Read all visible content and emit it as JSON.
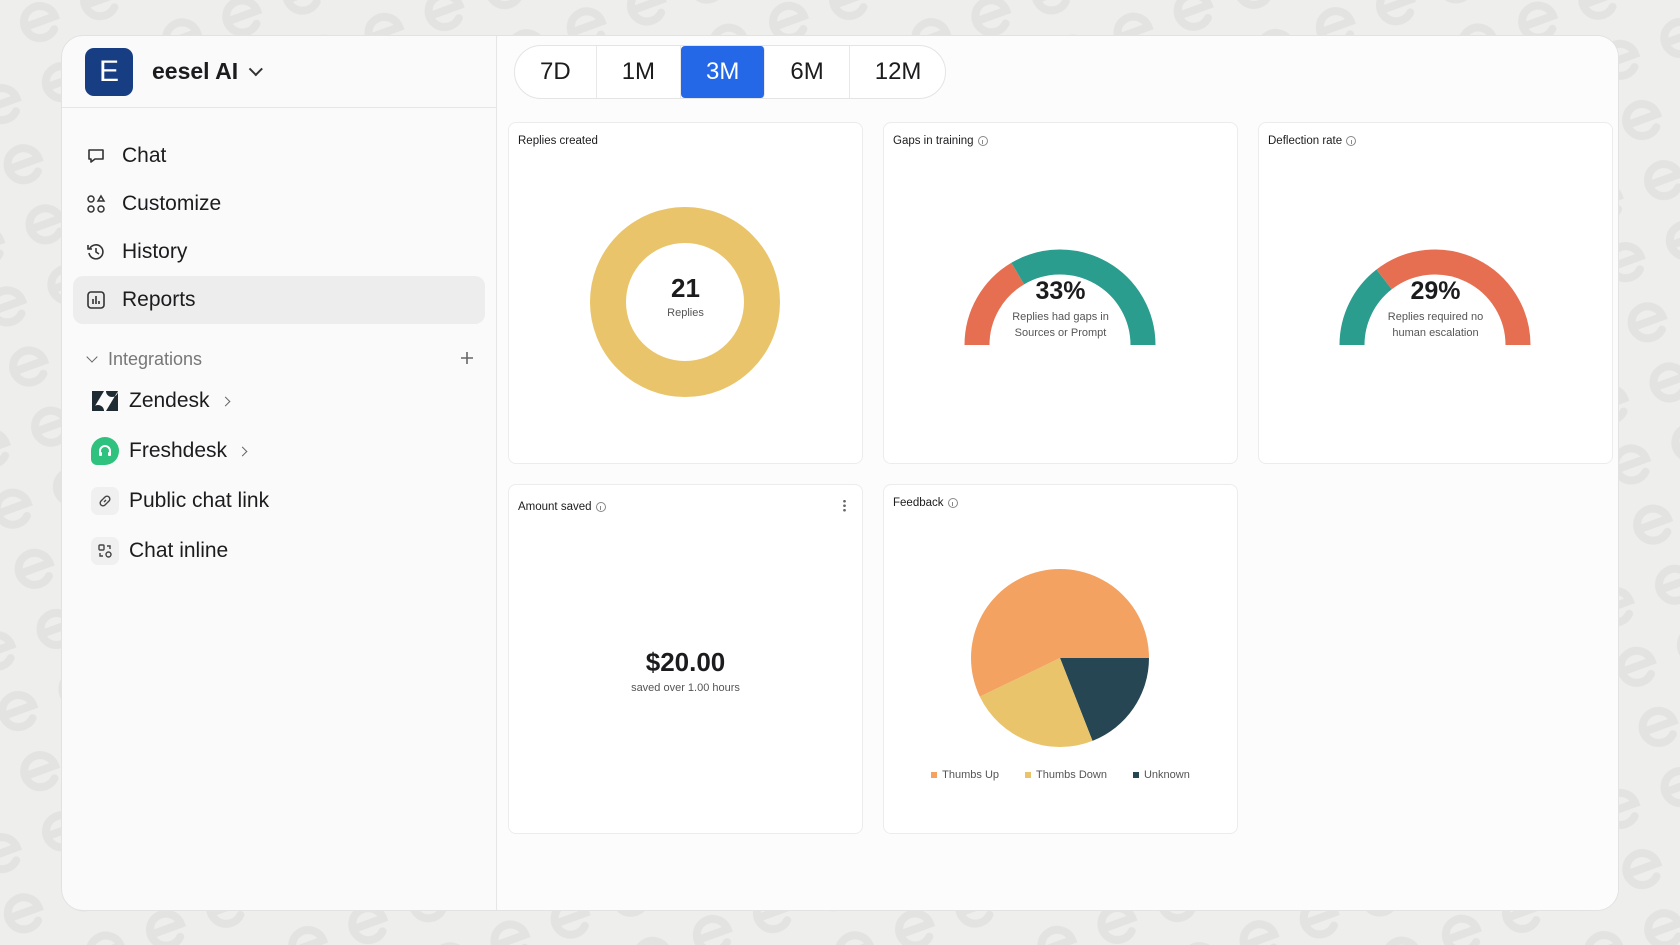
{
  "workspace": {
    "initial": "E",
    "name": "eesel AI"
  },
  "nav": [
    {
      "label": "Chat",
      "icon": "chat-bubble-icon"
    },
    {
      "label": "Customize",
      "icon": "shapes-icon"
    },
    {
      "label": "History",
      "icon": "history-icon"
    },
    {
      "label": "Reports",
      "icon": "bar-chart-icon",
      "active": true
    }
  ],
  "integrations": {
    "title": "Integrations",
    "items": [
      {
        "label": "Zendesk",
        "icon": "zendesk-logo"
      },
      {
        "label": "Freshdesk",
        "icon": "freshdesk-logo"
      },
      {
        "label": "Public chat link",
        "icon": "link-icon"
      },
      {
        "label": "Chat inline",
        "icon": "widget-icon"
      }
    ]
  },
  "ranges": [
    "7D",
    "1M",
    "3M",
    "6M",
    "12M"
  ],
  "selected_range": "3M",
  "colors": {
    "accent": "#2468e8",
    "teal": "#2a9d8f",
    "coral": "#e76f51",
    "yellow": "#e9c46a",
    "orange": "#f4a261",
    "navy": "#264653"
  },
  "cards": {
    "replies": {
      "title": "Replies created",
      "value": "21",
      "label": "Replies"
    },
    "gaps": {
      "title": "Gaps in training",
      "value": "33%",
      "label1": "Replies had gaps in",
      "label2": "Sources or Prompt",
      "percent": 33
    },
    "deflection": {
      "title": "Deflection rate",
      "value": "29%",
      "label1": "Replies required no",
      "label2": "human escalation",
      "percent": 29
    },
    "saved": {
      "title": "Amount saved",
      "value": "$20.00",
      "label": "saved over 1.00 hours"
    },
    "feedback": {
      "title": "Feedback"
    }
  },
  "chart_data": {
    "type": "pie",
    "title": "Feedback",
    "legend": "bottom",
    "categories": [
      "Thumbs Up",
      "Thumbs Down",
      "Unknown"
    ],
    "values": [
      12,
      5,
      4
    ],
    "colors": [
      "#f4a261",
      "#e9c46a",
      "#264653"
    ]
  }
}
